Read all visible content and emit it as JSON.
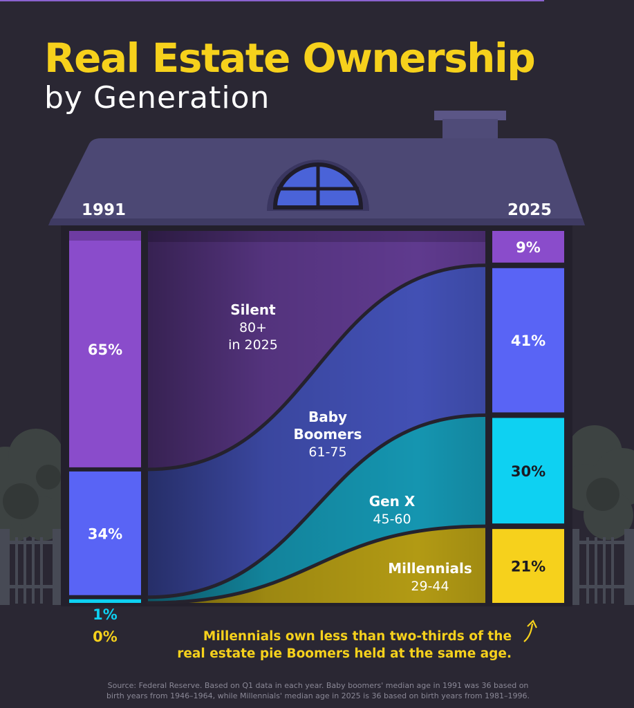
{
  "title": "Real Estate Ownership",
  "subtitle": "by Generation",
  "chart_data": {
    "type": "area",
    "unit": "%",
    "x": [
      "1991",
      "2025"
    ],
    "series": [
      {
        "name": "Silent",
        "label_lines": [
          "Silent",
          "80+",
          "in 2025"
        ],
        "values": [
          65,
          9
        ],
        "color": "#8a4ccb",
        "band_color": "#5f3a8e",
        "label_color": "#ffffff",
        "labels": [
          "65%",
          "9%"
        ]
      },
      {
        "name": "Baby Boomers",
        "label_lines": [
          "Baby",
          "Boomers",
          "61-75"
        ],
        "values": [
          34,
          41
        ],
        "color": "#5964f5",
        "band_color": "#4250b4",
        "label_color": "#ffffff",
        "labels": [
          "34%",
          "41%"
        ]
      },
      {
        "name": "Gen X",
        "label_lines": [
          "Gen X",
          "45-60"
        ],
        "values": [
          1,
          30
        ],
        "color": "#0ed1f2",
        "band_color": "#1595b0",
        "label_color": "#0ed1f2",
        "labels": [
          "1%",
          "30%"
        ]
      },
      {
        "name": "Millennials",
        "label_lines": [
          "Millennials",
          "29-44"
        ],
        "values": [
          0,
          21
        ],
        "color": "#f6d11c",
        "band_color": "#b29a14",
        "label_color": "#f6d11c",
        "labels": [
          "0%",
          "21%"
        ]
      }
    ]
  },
  "note": {
    "line1": "Millennials own less than two-thirds of the",
    "line2": "real estate pie Boomers held at the same age."
  },
  "source": {
    "line1": "Source: Federal Reserve. Based on Q1 data in each year. Baby boomers' median age in 1991 was 36 based on",
    "line2": "birth years from 1946–1964, while Millennials' median age in 2025 is 36 based on birth years from 1981–1996."
  }
}
